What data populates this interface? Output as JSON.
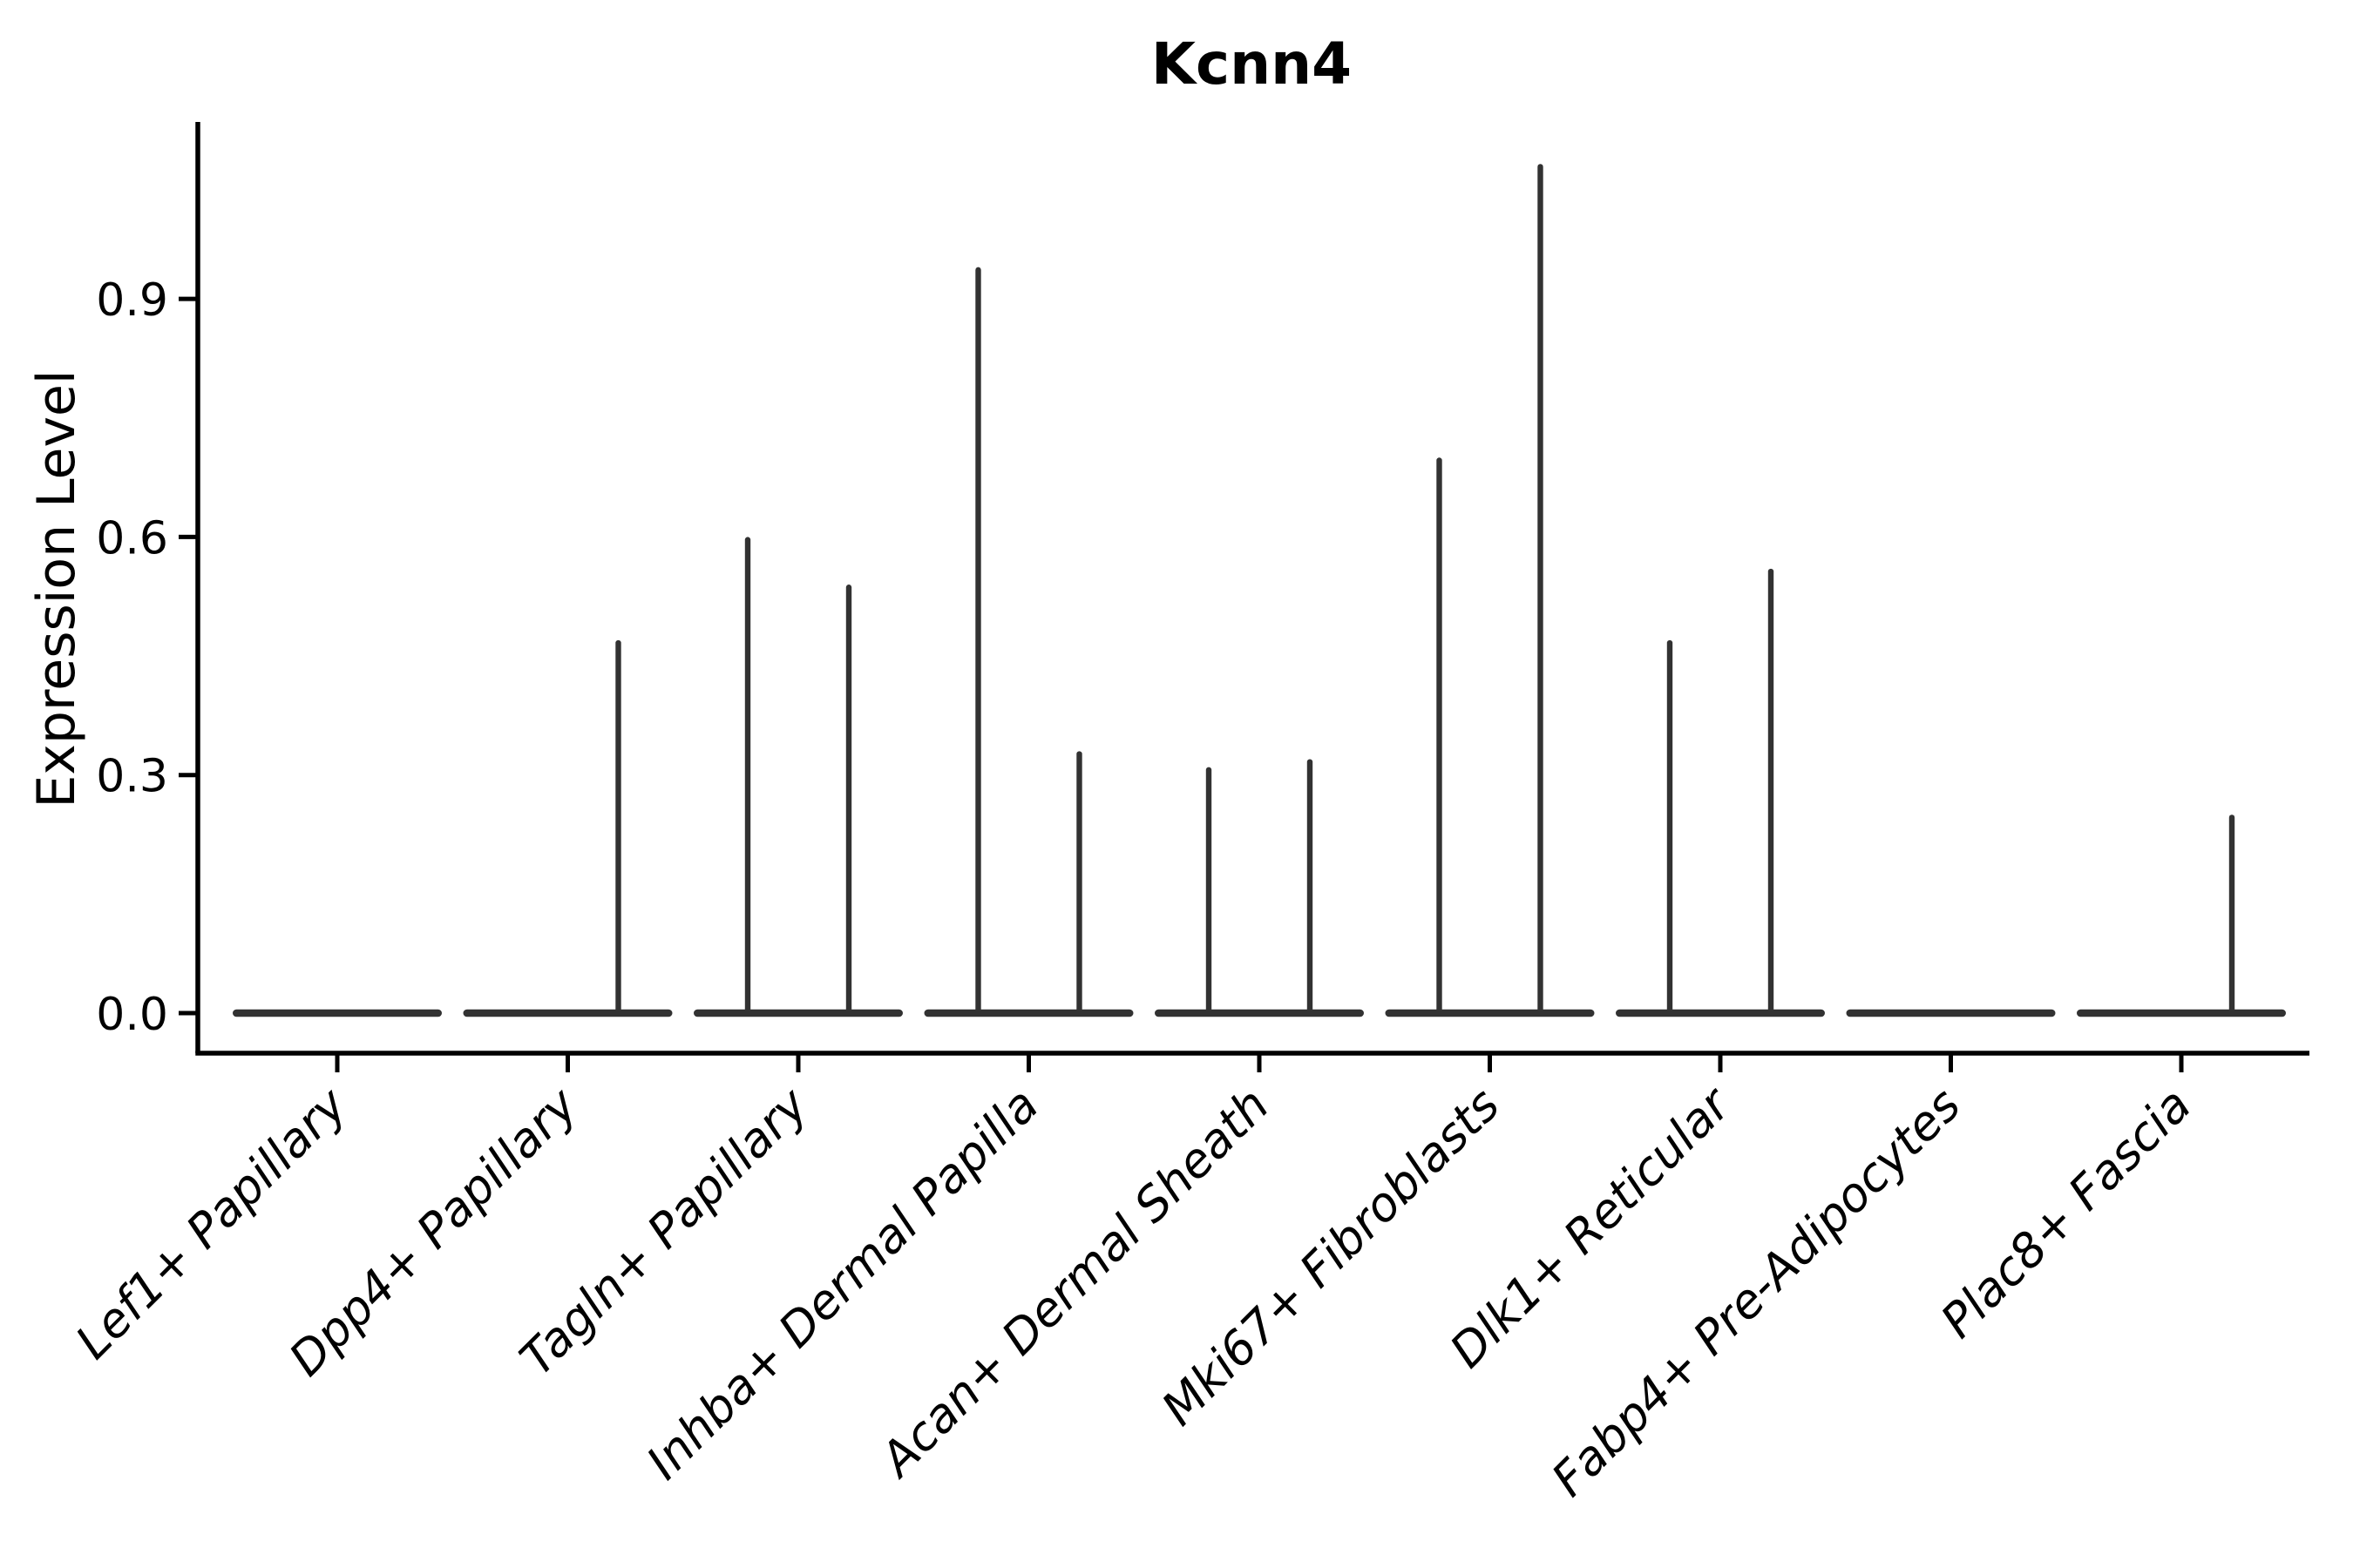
{
  "chart_data": {
    "type": "violin",
    "title": "Kcnn4",
    "ylabel": "Expression Level",
    "xlabel": "",
    "yticks": [
      "0.0",
      "0.3",
      "0.6",
      "0.9"
    ],
    "ylim": [
      0,
      1.12
    ],
    "grid": false,
    "legend": "none",
    "description": "Violin plot of Kcnn4 expression per fibroblast cell type; each category holds two thin violins whose bodies are flat at 0 with a narrow spike up to the maximum expression value (0 = no spike).",
    "violin_color": "#323232",
    "axis_color": "#000000",
    "categories": [
      {
        "label": "Lef1+ Papillary",
        "violins": [
          {
            "max": 0.0
          },
          {
            "max": 0.0
          }
        ]
      },
      {
        "label": "Dpp4+ Papillary",
        "violins": [
          {
            "max": 0.0
          },
          {
            "max": 0.47
          }
        ]
      },
      {
        "label": "Tagln+ Papillary",
        "violins": [
          {
            "max": 0.6
          },
          {
            "max": 0.54
          }
        ]
      },
      {
        "label": "Inhba+ Dermal Papilla",
        "violins": [
          {
            "max": 0.94
          },
          {
            "max": 0.33
          }
        ]
      },
      {
        "label": "Acan+ Dermal Sheath",
        "violins": [
          {
            "max": 0.31
          },
          {
            "max": 0.32
          }
        ]
      },
      {
        "label": "Mki67+ Fibroblasts",
        "violins": [
          {
            "max": 0.7
          },
          {
            "max": 1.07
          }
        ]
      },
      {
        "label": "Dlk1+ Reticular",
        "violins": [
          {
            "max": 0.47
          },
          {
            "max": 0.56
          }
        ]
      },
      {
        "label": "Fabp4+ Pre-Adipocytes",
        "violins": [
          {
            "max": 0.0
          },
          {
            "max": 0.0
          }
        ]
      },
      {
        "label": "Plac8+ Fascia",
        "violins": [
          {
            "max": 0.0
          },
          {
            "max": 0.25
          }
        ]
      }
    ]
  }
}
